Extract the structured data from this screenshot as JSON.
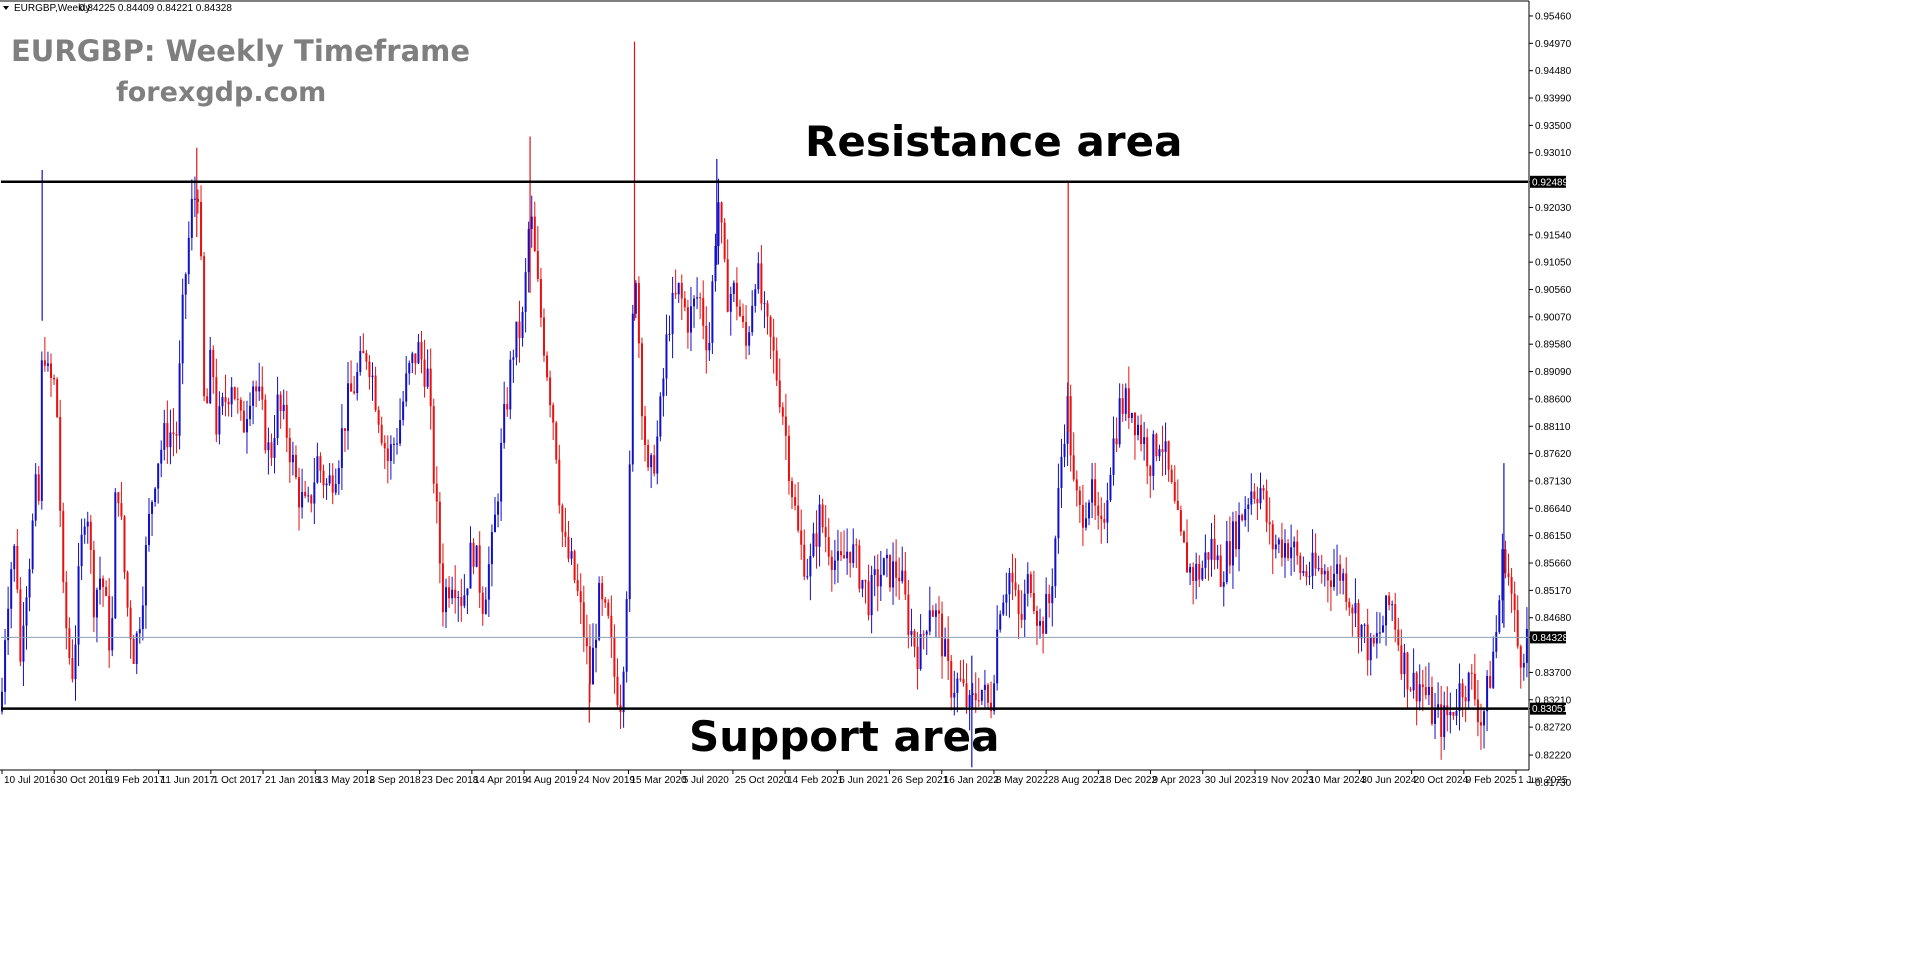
{
  "header": {
    "symbol": "EURGBP,Weekly",
    "ohlc": "0.84225 0.84409 0.84221 0.84328"
  },
  "annotations": {
    "title": "EURGBP: Weekly Timeframe",
    "website": "forexgdp.com",
    "resistance_label": "Resistance area",
    "support_label": "Support area"
  },
  "colors": {
    "bull": "#1010c8",
    "bear": "#e81010",
    "level_line": "#000000",
    "bid_line": "#8ca0b4",
    "label_bg": "#000000",
    "text_gray": "#7f7f7f"
  },
  "chart_data": {
    "type": "candlestick",
    "symbol": "EURGBP",
    "timeframe": "Weekly",
    "ylim": [
      0.8197,
      0.9571
    ],
    "yticks": [
      0.9546,
      0.9497,
      0.9448,
      0.9399,
      0.935,
      0.9301,
      0.92489,
      0.9203,
      0.9154,
      0.9105,
      0.9056,
      0.9007,
      0.8958,
      0.8909,
      0.886,
      0.8811,
      0.8762,
      0.8713,
      0.8664,
      0.8615,
      0.8566,
      0.8517,
      0.8468,
      0.84328,
      0.837,
      0.8321,
      0.83051,
      0.8272,
      0.8222,
      0.8173
    ],
    "ytick_labels": [
      "0.95460",
      "0.94970",
      "0.94480",
      "0.93990",
      "0.93500",
      "0.93010",
      "0.92489",
      "0.92030",
      "0.91540",
      "0.91050",
      "0.90560",
      "0.90070",
      "0.89580",
      "0.89090",
      "0.88600",
      "0.88110",
      "0.87620",
      "0.87130",
      "0.86640",
      "0.86150",
      "0.85660",
      "0.85170",
      "0.84680",
      "0.84328",
      "0.83700",
      "0.83210",
      "0.83051",
      "0.82720",
      "0.82220",
      "0.81730"
    ],
    "xtick_labels": [
      "10 Jul 2016",
      "30 Oct 2016",
      "19 Feb 2017",
      "11 Jun 2017",
      "1 Oct 2017",
      "21 Jan 2018",
      "13 May 2018",
      "2 Sep 2018",
      "23 Dec 2018",
      "14 Apr 2019",
      "4 Aug 2019",
      "24 Nov 2019",
      "15 Mar 2020",
      "5 Jul 2020",
      "25 Oct 2020",
      "14 Feb 2021",
      "6 Jun 2021",
      "26 Sep 2021",
      "16 Jan 2022",
      "8 May 2022",
      "28 Aug 2022",
      "18 Dec 2022",
      "9 Apr 2023",
      "30 Jul 2023",
      "19 Nov 2023",
      "10 Mar 2024",
      "30 Jun 2024",
      "20 Oct 2024",
      "9 Feb 2025",
      "1 Jun 2025"
    ],
    "resistance_level": 0.92489,
    "support_level": 0.83051,
    "current_price": 0.84328,
    "last_candle": {
      "open": 0.84225,
      "high": 0.84409,
      "low": 0.84221,
      "close": 0.84328
    },
    "close_path": [
      [
        0,
        0.83
      ],
      [
        5,
        0.848
      ],
      [
        10,
        0.856
      ],
      [
        15,
        0.86
      ],
      [
        20,
        0.835
      ],
      [
        22,
        0.848
      ],
      [
        30,
        0.86
      ],
      [
        35,
        0.87
      ],
      [
        40,
        0.865
      ],
      [
        41,
        0.905
      ],
      [
        45,
        0.89
      ],
      [
        55,
        0.888
      ],
      [
        62,
        0.85
      ],
      [
        68,
        0.84
      ],
      [
        72,
        0.837
      ],
      [
        78,
        0.855
      ],
      [
        85,
        0.87
      ],
      [
        92,
        0.85
      ],
      [
        100,
        0.855
      ],
      [
        110,
        0.84
      ],
      [
        115,
        0.875
      ],
      [
        125,
        0.85
      ],
      [
        133,
        0.84
      ],
      [
        140,
        0.85
      ],
      [
        148,
        0.865
      ],
      [
        155,
        0.875
      ],
      [
        165,
        0.88
      ],
      [
        175,
        0.88
      ],
      [
        182,
        0.905
      ],
      [
        190,
        0.92
      ],
      [
        197,
        0.925
      ],
      [
        203,
        0.88
      ],
      [
        210,
        0.895
      ],
      [
        215,
        0.88
      ],
      [
        222,
        0.885
      ],
      [
        230,
        0.89
      ],
      [
        240,
        0.88
      ],
      [
        250,
        0.89
      ],
      [
        258,
        0.885
      ],
      [
        268,
        0.875
      ],
      [
        275,
        0.885
      ],
      [
        285,
        0.88
      ],
      [
        295,
        0.87
      ],
      [
        305,
        0.865
      ],
      [
        315,
        0.875
      ],
      [
        325,
        0.87
      ],
      [
        335,
        0.875
      ],
      [
        345,
        0.885
      ],
      [
        355,
        0.89
      ],
      [
        365,
        0.895
      ],
      [
        375,
        0.885
      ],
      [
        385,
        0.875
      ],
      [
        395,
        0.88
      ],
      [
        405,
        0.89
      ],
      [
        415,
        0.895
      ],
      [
        425,
        0.89
      ],
      [
        432,
        0.87
      ],
      [
        440,
        0.85
      ],
      [
        450,
        0.855
      ],
      [
        460,
        0.85
      ],
      [
        470,
        0.86
      ],
      [
        480,
        0.85
      ],
      [
        490,
        0.86
      ],
      [
        500,
        0.88
      ],
      [
        510,
        0.895
      ],
      [
        520,
        0.9
      ],
      [
        527,
        0.92
      ],
      [
        535,
        0.905
      ],
      [
        545,
        0.89
      ],
      [
        552,
        0.88
      ],
      [
        560,
        0.86
      ],
      [
        570,
        0.855
      ],
      [
        580,
        0.845
      ],
      [
        587,
        0.835
      ],
      [
        595,
        0.85
      ],
      [
        605,
        0.845
      ],
      [
        612,
        0.835
      ],
      [
        618,
        0.832
      ],
      [
        625,
        0.86
      ],
      [
        631,
        0.915
      ],
      [
        637,
        0.89
      ],
      [
        645,
        0.87
      ],
      [
        655,
        0.88
      ],
      [
        665,
        0.9
      ],
      [
        675,
        0.905
      ],
      [
        685,
        0.9
      ],
      [
        695,
        0.905
      ],
      [
        705,
        0.895
      ],
      [
        714,
        0.923
      ],
      [
        722,
        0.905
      ],
      [
        732,
        0.905
      ],
      [
        742,
        0.895
      ],
      [
        752,
        0.91
      ],
      [
        760,
        0.9
      ],
      [
        768,
        0.895
      ],
      [
        778,
        0.885
      ],
      [
        788,
        0.87
      ],
      [
        795,
        0.86
      ],
      [
        805,
        0.855
      ],
      [
        815,
        0.865
      ],
      [
        825,
        0.86
      ],
      [
        835,
        0.855
      ],
      [
        845,
        0.86
      ],
      [
        855,
        0.855
      ],
      [
        865,
        0.85
      ],
      [
        875,
        0.855
      ],
      [
        885,
        0.855
      ],
      [
        895,
        0.855
      ],
      [
        905,
        0.845
      ],
      [
        915,
        0.84
      ],
      [
        925,
        0.85
      ],
      [
        935,
        0.845
      ],
      [
        945,
        0.835
      ],
      [
        955,
        0.835
      ],
      [
        965,
        0.83
      ],
      [
        975,
        0.835
      ],
      [
        985,
        0.83
      ],
      [
        995,
        0.85
      ],
      [
        1005,
        0.855
      ],
      [
        1015,
        0.845
      ],
      [
        1025,
        0.855
      ],
      [
        1035,
        0.845
      ],
      [
        1045,
        0.85
      ],
      [
        1052,
        0.865
      ],
      [
        1058,
        0.88
      ],
      [
        1063,
        0.885
      ],
      [
        1068,
        0.87
      ],
      [
        1075,
        0.865
      ],
      [
        1085,
        0.87
      ],
      [
        1095,
        0.86
      ],
      [
        1105,
        0.875
      ],
      [
        1115,
        0.885
      ],
      [
        1125,
        0.885
      ],
      [
        1135,
        0.88
      ],
      [
        1145,
        0.875
      ],
      [
        1155,
        0.88
      ],
      [
        1165,
        0.87
      ],
      [
        1175,
        0.86
      ],
      [
        1185,
        0.855
      ],
      [
        1195,
        0.855
      ],
      [
        1205,
        0.86
      ],
      [
        1215,
        0.855
      ],
      [
        1225,
        0.86
      ],
      [
        1235,
        0.865
      ],
      [
        1245,
        0.87
      ],
      [
        1255,
        0.87
      ],
      [
        1265,
        0.86
      ],
      [
        1275,
        0.86
      ],
      [
        1285,
        0.86
      ],
      [
        1295,
        0.855
      ],
      [
        1305,
        0.855
      ],
      [
        1315,
        0.855
      ],
      [
        1325,
        0.855
      ],
      [
        1335,
        0.855
      ],
      [
        1345,
        0.85
      ],
      [
        1355,
        0.845
      ],
      [
        1365,
        0.84
      ],
      [
        1375,
        0.845
      ],
      [
        1385,
        0.85
      ],
      [
        1395,
        0.84
      ],
      [
        1405,
        0.835
      ],
      [
        1415,
        0.835
      ],
      [
        1425,
        0.83
      ],
      [
        1435,
        0.828
      ],
      [
        1445,
        0.83
      ],
      [
        1455,
        0.835
      ],
      [
        1465,
        0.835
      ],
      [
        1475,
        0.828
      ],
      [
        1482,
        0.835
      ],
      [
        1490,
        0.845
      ],
      [
        1497,
        0.86
      ],
      [
        1505,
        0.85
      ],
      [
        1512,
        0.84
      ],
      [
        1520,
        0.8433
      ]
    ]
  }
}
